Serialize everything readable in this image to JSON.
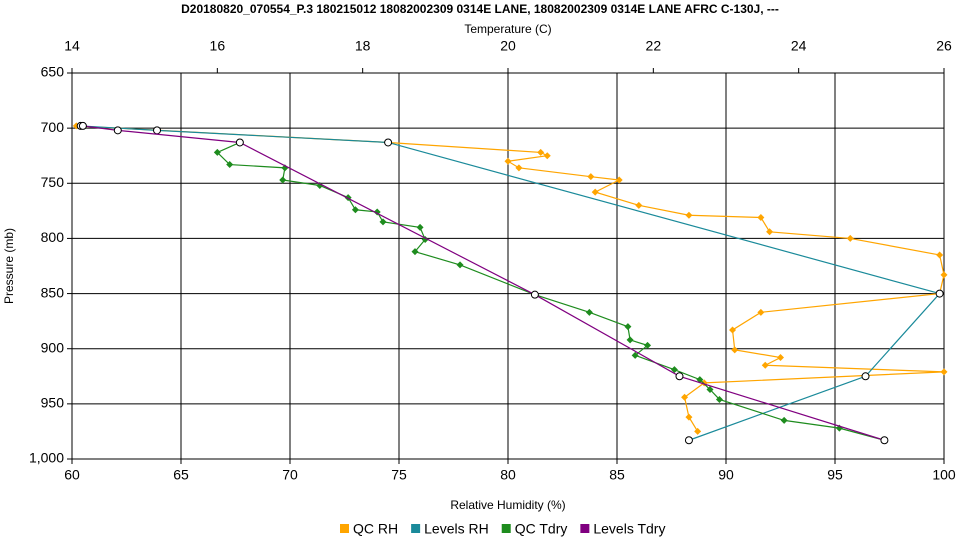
{
  "chart_data": {
    "type": "line",
    "title": "D20180820_070554_P.3 180215012 18082002309 0314E LANE, 18082002309 0314E LANE AFRC C-130J, ---",
    "x_label": "Relative Humidity (%)",
    "x2_label": "Temperature (C)",
    "y_label": "Pressure (mb)",
    "xlim": [
      60,
      100
    ],
    "xticks": [
      60,
      65,
      70,
      75,
      80,
      85,
      90,
      95,
      100
    ],
    "x2lim": [
      14,
      26
    ],
    "x2ticks": [
      14,
      16,
      18,
      20,
      22,
      24,
      26
    ],
    "ylim": [
      650,
      1000
    ],
    "y_inverted": true,
    "yticks": [
      650,
      700,
      750,
      800,
      850,
      900,
      950,
      {
        "value": 1000,
        "label": "1,000"
      }
    ],
    "grid": true,
    "legend": "bottom",
    "series": [
      {
        "name": "QC RH",
        "color": "#ffa500",
        "axis": "x",
        "x": [
          60.2,
          74.5,
          81.5,
          81.8,
          80.0,
          80.5,
          83.8,
          85.1,
          84.0,
          86.0,
          88.3,
          91.6,
          92.0,
          95.7,
          99.8,
          100.0,
          99.8,
          91.6,
          90.3,
          90.4,
          92.5,
          91.8,
          100.0,
          89.0,
          88.1,
          88.3,
          88.7
        ],
        "values": [
          698,
          713,
          722,
          725,
          730,
          736,
          744,
          747,
          758,
          770,
          779,
          781,
          794,
          800,
          815,
          833,
          850,
          867,
          883,
          901,
          908,
          915,
          921,
          931,
          944,
          962,
          975
        ]
      },
      {
        "name": "Levels RH",
        "color": "#1a8a9a",
        "axis": "x",
        "x": [
          60.4,
          63.9,
          74.5,
          99.8,
          96.4,
          88.3
        ],
        "values": [
          698,
          702,
          713,
          850,
          925,
          983
        ]
      },
      {
        "name": "QC Tdry",
        "color": "#1e8c1e",
        "axis": "x2",
        "x": [
          16.31,
          16.0,
          16.17,
          16.93,
          16.9,
          17.41,
          17.8,
          17.9,
          18.2,
          18.28,
          18.79,
          18.86,
          18.72,
          19.34,
          20.37,
          21.12,
          21.65,
          21.68,
          21.92,
          21.75,
          22.29,
          22.64,
          22.78,
          22.91,
          23.8,
          24.56,
          25.18
        ],
        "values": [
          713,
          722,
          733,
          736,
          747,
          752,
          763,
          774,
          776,
          785,
          790,
          801,
          812,
          824,
          851,
          867,
          880,
          892,
          897,
          906,
          919,
          928,
          937,
          946,
          965,
          972,
          983
        ]
      },
      {
        "name": "Levels Tdry",
        "color": "#800080",
        "axis": "x2",
        "x": [
          14.15,
          14.63,
          16.31,
          20.37,
          22.36,
          25.18
        ],
        "values": [
          698,
          702,
          713,
          851,
          925,
          983
        ]
      }
    ]
  }
}
